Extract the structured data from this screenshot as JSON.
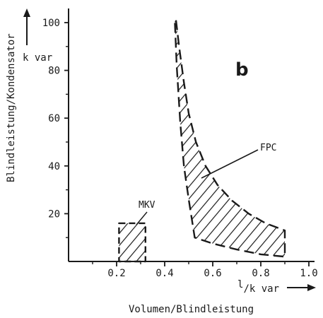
{
  "chart_data": {
    "type": "area",
    "panel_label": "b",
    "xlabel": "Volumen/Blindleistung",
    "x_unit": "l/k var",
    "x_unit_prefix": "l",
    "x_unit_suffix": "/k var",
    "ylabel": "Blindleistung/Kondensator",
    "y_unit": "k var",
    "xlim": [
      0,
      1.0
    ],
    "ylim": [
      0,
      100
    ],
    "x_ticks": [
      0.2,
      0.4,
      0.6,
      0.8,
      1.0
    ],
    "x_tick_labels": [
      "0.2",
      "0.4",
      "0.6",
      "0.8",
      "1.0"
    ],
    "y_ticks": [
      20,
      40,
      60,
      80,
      100
    ],
    "y_tick_labels": [
      "20",
      "40",
      "60",
      "80",
      "100"
    ],
    "grid": false,
    "regions": [
      {
        "name": "MKV",
        "label": "MKV",
        "pattern": "hatched",
        "upper": {
          "x": [
            0.21,
            0.32
          ],
          "y": [
            16,
            16
          ]
        },
        "lower": {
          "x": [
            0.21,
            0.32
          ],
          "y": [
            0,
            0
          ]
        }
      },
      {
        "name": "FPC",
        "label": "FPC",
        "pattern": "hatched",
        "upper": {
          "x": [
            0.447,
            0.46,
            0.48,
            0.5,
            0.53,
            0.57,
            0.62,
            0.68,
            0.75,
            0.82,
            0.9
          ],
          "y": [
            101,
            90,
            75,
            62,
            50,
            40,
            32,
            25.5,
            20,
            16,
            13
          ]
        },
        "lower": {
          "x": [
            0.442,
            0.45,
            0.465,
            0.48,
            0.5,
            0.525,
            0.6,
            0.7,
            0.8,
            0.9
          ],
          "y": [
            101,
            82,
            58,
            40,
            26,
            10,
            7.5,
            5,
            3,
            2
          ]
        }
      }
    ]
  }
}
